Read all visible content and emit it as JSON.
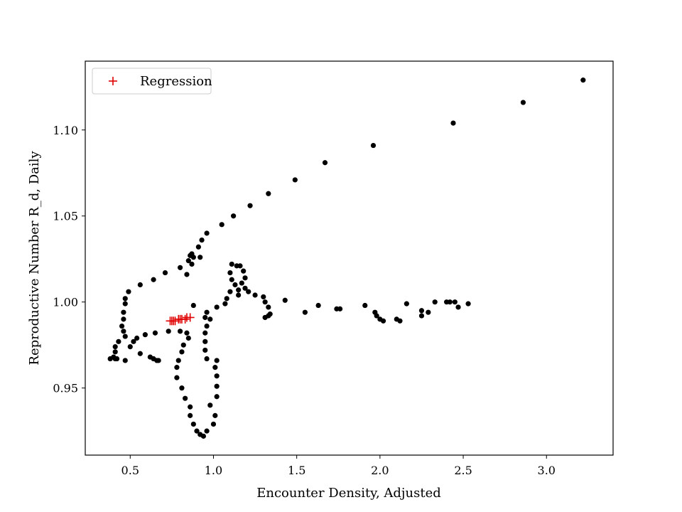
{
  "chart_data": {
    "type": "scatter",
    "title": "",
    "xlabel": "Encounter Density, Adjusted",
    "ylabel": "Reproductive Number R_d, Daily",
    "xlim": [
      0.23,
      3.4
    ],
    "ylim": [
      0.911,
      1.14
    ],
    "x_ticks": [
      0.5,
      1.0,
      1.5,
      2.0,
      2.5,
      3.0
    ],
    "x_tick_labels": [
      "0.5",
      "1.0",
      "1.5",
      "2.0",
      "2.5",
      "3.0"
    ],
    "y_ticks": [
      0.95,
      1.0,
      1.05,
      1.1
    ],
    "y_tick_labels": [
      "0.95",
      "1.00",
      "1.05",
      "1.10"
    ],
    "grid": false,
    "legend": {
      "position": "top-left",
      "entries": [
        "Regression"
      ]
    },
    "series": [
      {
        "name": "",
        "marker": "circle",
        "color": "#000000",
        "points": [
          [
            3.22,
            1.129
          ],
          [
            2.86,
            1.116
          ],
          [
            2.44,
            1.104
          ],
          [
            1.96,
            1.091
          ],
          [
            1.67,
            1.081
          ],
          [
            1.49,
            1.071
          ],
          [
            1.33,
            1.063
          ],
          [
            1.22,
            1.056
          ],
          [
            1.12,
            1.05
          ],
          [
            1.05,
            1.045
          ],
          [
            0.96,
            1.04
          ],
          [
            0.93,
            1.036
          ],
          [
            0.91,
            1.032
          ],
          [
            0.87,
            1.028
          ],
          [
            0.85,
            1.024
          ],
          [
            0.8,
            1.02
          ],
          [
            0.71,
            1.017
          ],
          [
            0.64,
            1.013
          ],
          [
            0.56,
            1.01
          ],
          [
            0.49,
            1.006
          ],
          [
            0.47,
            1.002
          ],
          [
            0.47,
            0.999
          ],
          [
            0.46,
            0.994
          ],
          [
            0.46,
            0.99
          ],
          [
            0.45,
            0.986
          ],
          [
            0.46,
            0.983
          ],
          [
            0.47,
            0.98
          ],
          [
            0.43,
            0.977
          ],
          [
            0.41,
            0.974
          ],
          [
            0.41,
            0.971
          ],
          [
            0.4,
            0.968
          ],
          [
            0.38,
            0.967
          ],
          [
            0.41,
            0.967
          ],
          [
            0.42,
            0.967
          ],
          [
            0.47,
            0.966
          ],
          [
            0.5,
            0.974
          ],
          [
            0.52,
            0.977
          ],
          [
            0.56,
            0.97
          ],
          [
            0.62,
            0.968
          ],
          [
            0.64,
            0.967
          ],
          [
            0.66,
            0.966
          ],
          [
            0.67,
            0.966
          ],
          [
            0.54,
            0.979
          ],
          [
            0.59,
            0.981
          ],
          [
            0.65,
            0.982
          ],
          [
            0.73,
            0.983
          ],
          [
            0.8,
            0.983
          ],
          [
            0.84,
            0.982
          ],
          [
            0.85,
            0.979
          ],
          [
            0.82,
            0.975
          ],
          [
            0.81,
            0.971
          ],
          [
            0.79,
            0.966
          ],
          [
            0.78,
            0.962
          ],
          [
            0.78,
            0.956
          ],
          [
            0.81,
            0.95
          ],
          [
            0.83,
            0.944
          ],
          [
            0.86,
            0.939
          ],
          [
            0.86,
            0.934
          ],
          [
            0.88,
            0.929
          ],
          [
            0.9,
            0.925
          ],
          [
            0.92,
            0.923
          ],
          [
            0.94,
            0.922
          ],
          [
            0.96,
            0.925
          ],
          [
            1.0,
            0.929
          ],
          [
            1.01,
            0.934
          ],
          [
            0.98,
            0.94
          ],
          [
            1.02,
            0.945
          ],
          [
            1.02,
            0.951
          ],
          [
            1.02,
            0.957
          ],
          [
            1.01,
            0.962
          ],
          [
            1.02,
            0.966
          ],
          [
            0.96,
            0.967
          ],
          [
            0.95,
            0.972
          ],
          [
            0.95,
            0.977
          ],
          [
            0.95,
            0.982
          ],
          [
            0.96,
            0.986
          ],
          [
            0.95,
            0.991
          ],
          [
            0.96,
            0.994
          ],
          [
            0.98,
            0.99
          ],
          [
            1.02,
            0.997
          ],
          [
            1.07,
            0.999
          ],
          [
            1.08,
            1.002
          ],
          [
            1.1,
            1.006
          ],
          [
            1.13,
            1.01
          ],
          [
            1.11,
            1.013
          ],
          [
            1.1,
            1.017
          ],
          [
            1.11,
            1.022
          ],
          [
            1.14,
            1.021
          ],
          [
            1.16,
            1.021
          ],
          [
            1.18,
            1.018
          ],
          [
            1.19,
            1.014
          ],
          [
            1.17,
            1.011
          ],
          [
            1.15,
            1.007
          ],
          [
            1.15,
            1.004
          ],
          [
            1.19,
            1.008
          ],
          [
            1.21,
            1.006
          ],
          [
            1.25,
            1.004
          ],
          [
            1.3,
            1.003
          ],
          [
            1.31,
            1.0
          ],
          [
            1.33,
            0.997
          ],
          [
            1.34,
            0.993
          ],
          [
            1.31,
            0.991
          ],
          [
            1.33,
            0.992
          ],
          [
            1.43,
            1.001
          ],
          [
            1.55,
            0.994
          ],
          [
            1.63,
            0.998
          ],
          [
            1.74,
            0.996
          ],
          [
            1.76,
            0.996
          ],
          [
            1.91,
            0.998
          ],
          [
            1.97,
            0.994
          ],
          [
            1.98,
            0.992
          ],
          [
            2.0,
            0.99
          ],
          [
            2.02,
            0.989
          ],
          [
            2.1,
            0.99
          ],
          [
            2.12,
            0.989
          ],
          [
            2.16,
            0.999
          ],
          [
            2.25,
            0.995
          ],
          [
            2.25,
            0.992
          ],
          [
            2.29,
            0.994
          ],
          [
            2.33,
            1.0
          ],
          [
            2.4,
            1.0
          ],
          [
            2.42,
            1.0
          ],
          [
            2.45,
            1.0
          ],
          [
            2.47,
            0.997
          ],
          [
            2.53,
            0.999
          ],
          [
            0.88,
            0.998
          ],
          [
            0.84,
            1.016
          ],
          [
            0.87,
            1.022
          ],
          [
            0.86,
            1.027
          ],
          [
            0.88,
            1.026
          ],
          [
            0.92,
            1.026
          ]
        ]
      },
      {
        "name": "Regression",
        "marker": "plus",
        "color": "#e00000",
        "points": [
          [
            0.74,
            0.989
          ],
          [
            0.75,
            0.989
          ],
          [
            0.76,
            0.989
          ],
          [
            0.77,
            0.989
          ],
          [
            0.79,
            0.99
          ],
          [
            0.8,
            0.99
          ],
          [
            0.81,
            0.99
          ],
          [
            0.83,
            0.99
          ],
          [
            0.84,
            0.991
          ],
          [
            0.86,
            0.991
          ]
        ]
      }
    ]
  }
}
